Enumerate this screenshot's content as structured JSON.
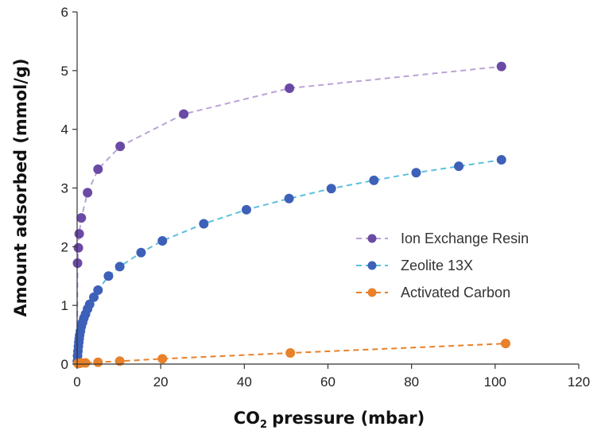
{
  "chart_data": {
    "type": "scatter",
    "title": "",
    "xlabel": "pressure (mbar)",
    "xlabel_prefix": "CO",
    "xlabel_subscript": "2",
    "ylabel": "Amount adsorbed (mmol/g)",
    "xlim": [
      0,
      120
    ],
    "ylim": [
      0,
      6
    ],
    "xticks": [
      0,
      20,
      40,
      60,
      80,
      100,
      120
    ],
    "yticks": [
      0,
      1,
      2,
      3,
      4,
      5,
      6
    ],
    "grid": false,
    "legend_position": "center-right",
    "series": [
      {
        "name": "Ion Exchange Resin",
        "marker_color": "#6a4aa5",
        "line_color": "#b9a3d6",
        "line_style": "dashed",
        "x": [
          0.1,
          0.3,
          0.5,
          1.0,
          2.5,
          5.0,
          10.3,
          25.5,
          50.8,
          101.5
        ],
        "y": [
          1.72,
          1.98,
          2.22,
          2.49,
          2.92,
          3.32,
          3.71,
          4.26,
          4.7,
          5.07
        ]
      },
      {
        "name": "Zeolite 13X",
        "marker_color": "#3d60b8",
        "line_color": "#5bc0dd",
        "line_style": "dashed",
        "x": [
          0.05,
          0.1,
          0.2,
          0.3,
          0.4,
          0.5,
          0.6,
          0.8,
          1.0,
          1.3,
          1.6,
          2.0,
          2.5,
          3.0,
          4.0,
          5.0,
          7.5,
          10.2,
          15.3,
          20.4,
          30.3,
          40.5,
          50.7,
          60.8,
          71.0,
          81.1,
          91.3,
          101.5
        ],
        "y": [
          0.05,
          0.14,
          0.22,
          0.3,
          0.37,
          0.43,
          0.49,
          0.56,
          0.64,
          0.71,
          0.78,
          0.85,
          0.94,
          1.02,
          1.14,
          1.26,
          1.5,
          1.66,
          1.9,
          2.1,
          2.39,
          2.63,
          2.82,
          2.99,
          3.13,
          3.26,
          3.37,
          3.48
        ]
      },
      {
        "name": "Activated Carbon",
        "marker_color": "#e8812a",
        "line_color": "#e8812a",
        "line_style": "dashed",
        "x": [
          0.2,
          0.5,
          1.0,
          2.0,
          5.0,
          10.2,
          20.4,
          51.0,
          102.5
        ],
        "y": [
          0.01,
          0.01,
          0.02,
          0.02,
          0.03,
          0.05,
          0.09,
          0.19,
          0.35
        ]
      }
    ]
  }
}
